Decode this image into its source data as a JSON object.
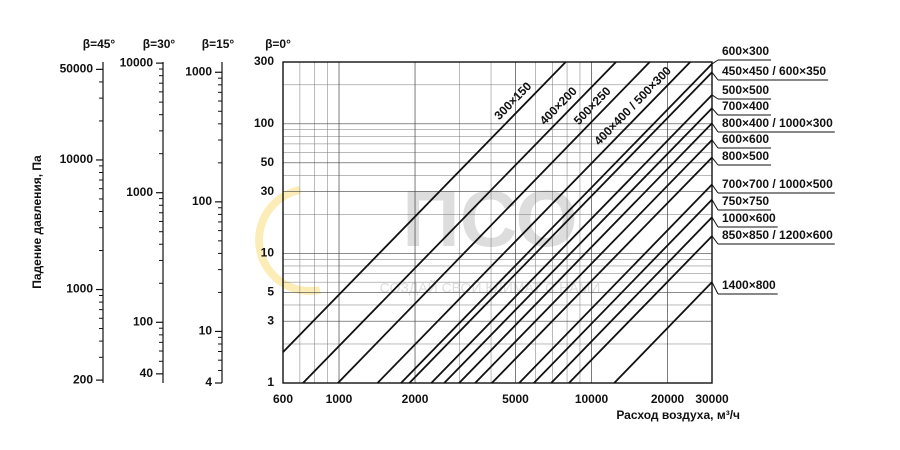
{
  "chart_data": {
    "type": "line",
    "log_x": true,
    "log_y": true,
    "grid": true,
    "y_label": "Падение давления, Па",
    "x_label": "Расход воздуха, м³/ч",
    "axis_header": "β=0°",
    "watermark": "ПСО",
    "watermark_slogan": "СОЗДАЙ СВОЙ КЛИМАТ С НАМИ",
    "xlim": [
      600,
      30000
    ],
    "ylim": [
      1,
      300
    ],
    "xticks": [
      600,
      1000,
      2000,
      5000,
      10000,
      20000,
      30000
    ],
    "x_minor_ticks": [
      700,
      800,
      900,
      3000,
      4000,
      6000,
      7000,
      8000,
      9000
    ],
    "yticks": [
      1,
      3,
      5,
      10,
      30,
      50,
      100,
      300
    ],
    "y_minor_ticks": [
      2,
      4,
      6,
      7,
      8,
      9,
      20,
      40,
      60,
      70,
      80,
      90,
      200
    ],
    "aux_axes": [
      {
        "header": "β=45°",
        "ylim": [
          190,
          57000
        ],
        "yticks": [
          200,
          1000,
          10000,
          50000
        ],
        "minor_ticks": [
          300,
          400,
          500,
          600,
          700,
          800,
          900,
          2000,
          3000,
          4000,
          5000,
          6000,
          7000,
          8000,
          9000,
          20000,
          30000,
          40000
        ]
      },
      {
        "header": "β=30°",
        "ylim": [
          34,
          10200
        ],
        "yticks": [
          40,
          100,
          1000,
          10000
        ],
        "minor_ticks": [
          50,
          60,
          70,
          80,
          90,
          200,
          300,
          400,
          500,
          600,
          700,
          800,
          900,
          2000,
          3000,
          4000,
          5000,
          6000,
          7000,
          8000,
          9000
        ]
      },
      {
        "header": "β=15°",
        "ylim": [
          4,
          1200
        ],
        "yticks": [
          4,
          10,
          100,
          1000
        ],
        "minor_ticks": [
          5,
          6,
          7,
          8,
          9,
          20,
          30,
          40,
          50,
          60,
          70,
          80,
          90,
          200,
          300,
          400,
          500,
          600,
          700,
          800,
          900
        ]
      }
    ],
    "series": [
      {
        "name": "300×150",
        "color": "#111",
        "label_position": "along",
        "x": [
          600,
          7900
        ],
        "values": [
          1.73,
          300
        ]
      },
      {
        "name": "400×200",
        "color": "#111",
        "label_position": "along",
        "x": [
          720,
          12500
        ],
        "values": [
          1,
          300
        ]
      },
      {
        "name": "500×250",
        "color": "#111",
        "label_position": "along",
        "x": [
          990,
          17000
        ],
        "values": [
          1,
          300
        ]
      },
      {
        "name": "400×400 / 500×300",
        "color": "#111",
        "label_position": "along",
        "x": [
          1420,
          24600
        ],
        "values": [
          1,
          300
        ]
      },
      {
        "name": "600×300",
        "color": "#111",
        "label_position": "right",
        "x": [
          1760,
          30000
        ],
        "values": [
          1,
          290
        ]
      },
      {
        "name": "450×450 / 600×350",
        "color": "#111",
        "label_position": "right",
        "x": [
          1900,
          30000
        ],
        "values": [
          1,
          250
        ]
      },
      {
        "name": "500×500",
        "color": "#111",
        "label_position": "right",
        "x": [
          2320,
          30000
        ],
        "values": [
          1,
          167
        ]
      },
      {
        "name": "700×400",
        "color": "#111",
        "label_position": "right",
        "x": [
          2610,
          30000
        ],
        "values": [
          1,
          132
        ]
      },
      {
        "name": "800×400 / 1000×300",
        "color": "#111",
        "label_position": "right",
        "x": [
          2990,
          30000
        ],
        "values": [
          1,
          101
        ]
      },
      {
        "name": "600×600",
        "color": "#111",
        "label_position": "right",
        "x": [
          3460,
          30000
        ],
        "values": [
          1,
          75
        ]
      },
      {
        "name": "800×500",
        "color": "#111",
        "label_position": "right",
        "x": [
          4030,
          30000
        ],
        "values": [
          1,
          55
        ]
      },
      {
        "name": "700×700 / 1000×500",
        "color": "#111",
        "label_position": "right",
        "x": [
          5170,
          30000
        ],
        "values": [
          1,
          34
        ]
      },
      {
        "name": "750×750",
        "color": "#111",
        "label_position": "right",
        "x": [
          5910,
          30000
        ],
        "values": [
          1,
          26
        ]
      },
      {
        "name": "1000×600",
        "color": "#111",
        "label_position": "right",
        "x": [
          6920,
          30000
        ],
        "values": [
          1,
          19
        ]
      },
      {
        "name": "850×850 / 1200×600",
        "color": "#111",
        "label_position": "right",
        "x": [
          8140,
          30000
        ],
        "values": [
          1,
          13.6
        ]
      },
      {
        "name": "1400×800",
        "color": "#111",
        "label_position": "right",
        "x": [
          12300,
          30000
        ],
        "values": [
          1,
          6
        ]
      }
    ]
  }
}
